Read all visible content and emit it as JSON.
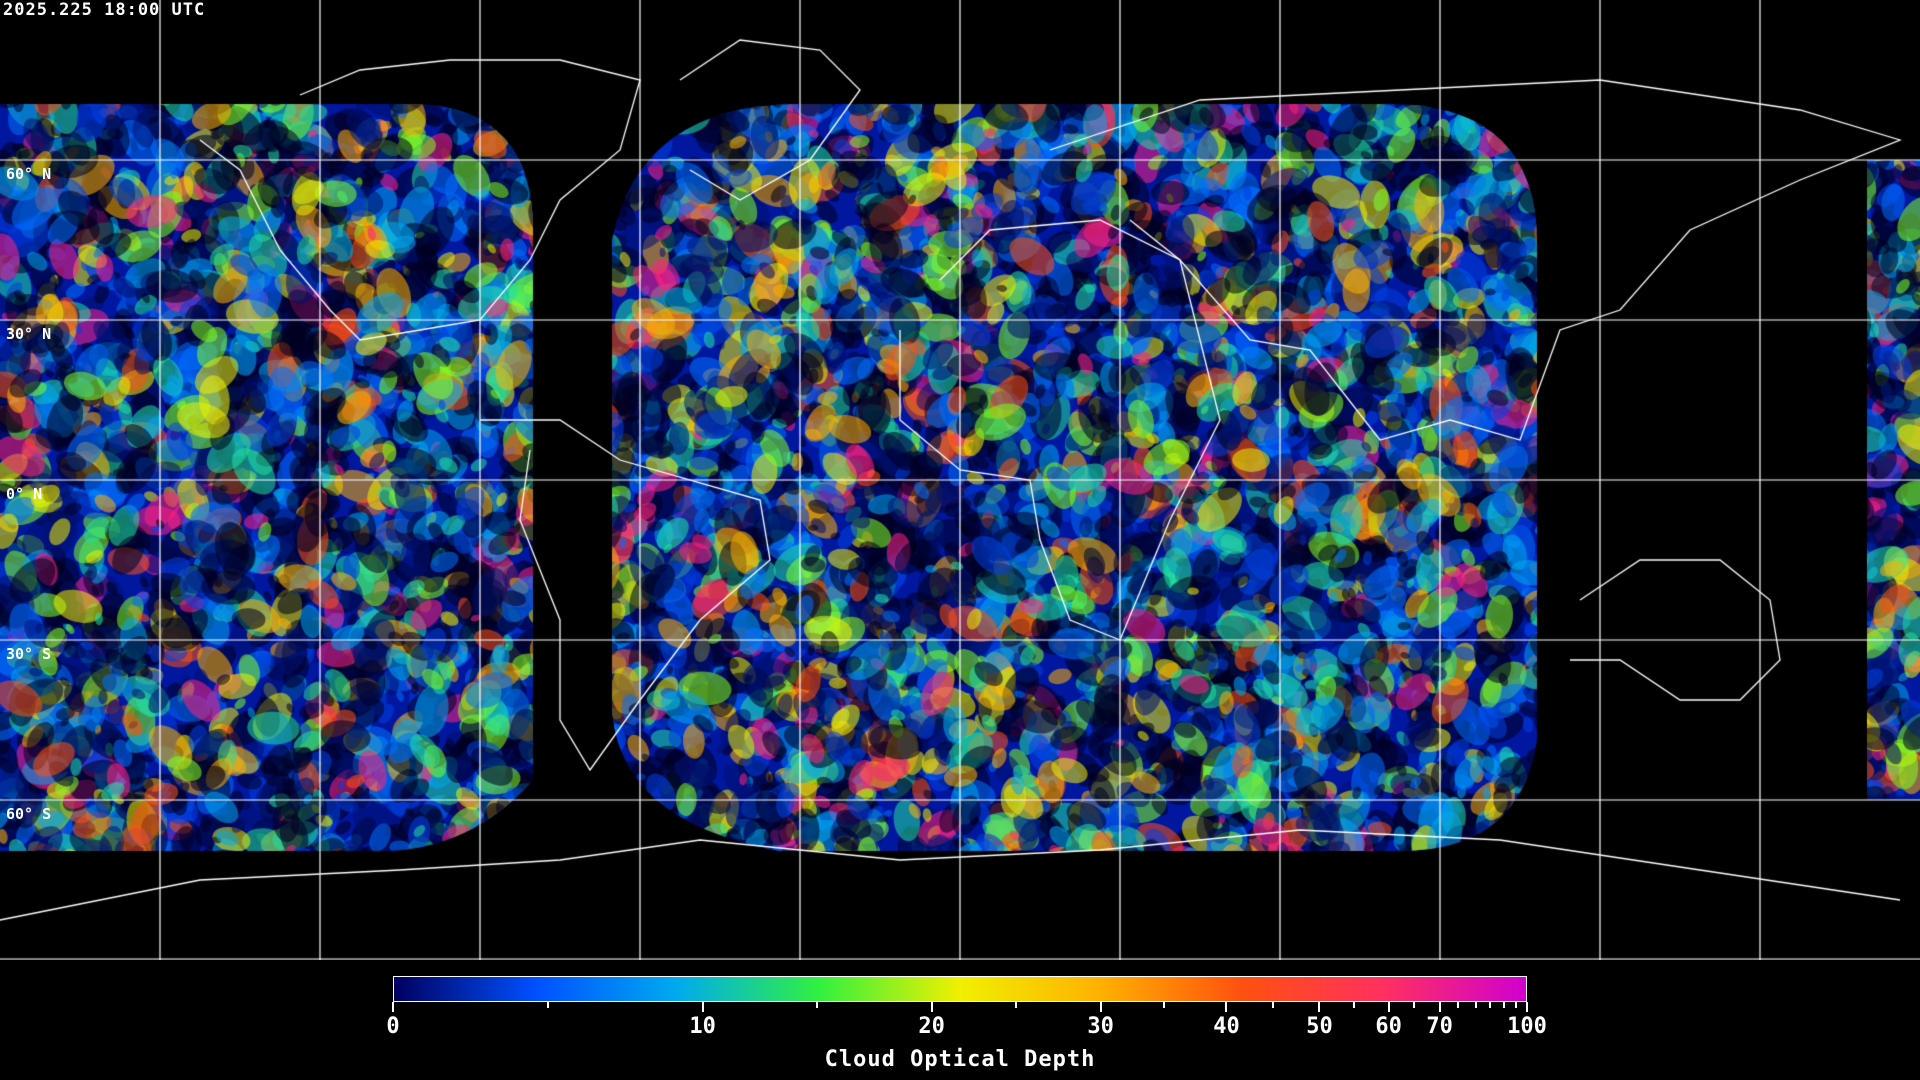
{
  "header": {
    "timestamp": "2025.225 18:00 UTC"
  },
  "map": {
    "latitude_labels": [
      "60° N",
      "30° N",
      "0° N",
      "30° S",
      "60° S"
    ],
    "grid_spacing_degrees": 30,
    "background": "#000000",
    "coastline_color": "#ffffff",
    "grid_color": "#ffffff"
  },
  "colorbar": {
    "title": "Cloud Optical Depth",
    "range": [
      0,
      100
    ],
    "major_ticks": [
      "0",
      "10",
      "20",
      "30",
      "40",
      "50",
      "60",
      "70",
      "100"
    ],
    "colors": [
      "#000060",
      "#0050ff",
      "#00aaee",
      "#30f040",
      "#f0f000",
      "#ffb000",
      "#ff5010",
      "#ff3060",
      "#d000d0"
    ]
  }
}
